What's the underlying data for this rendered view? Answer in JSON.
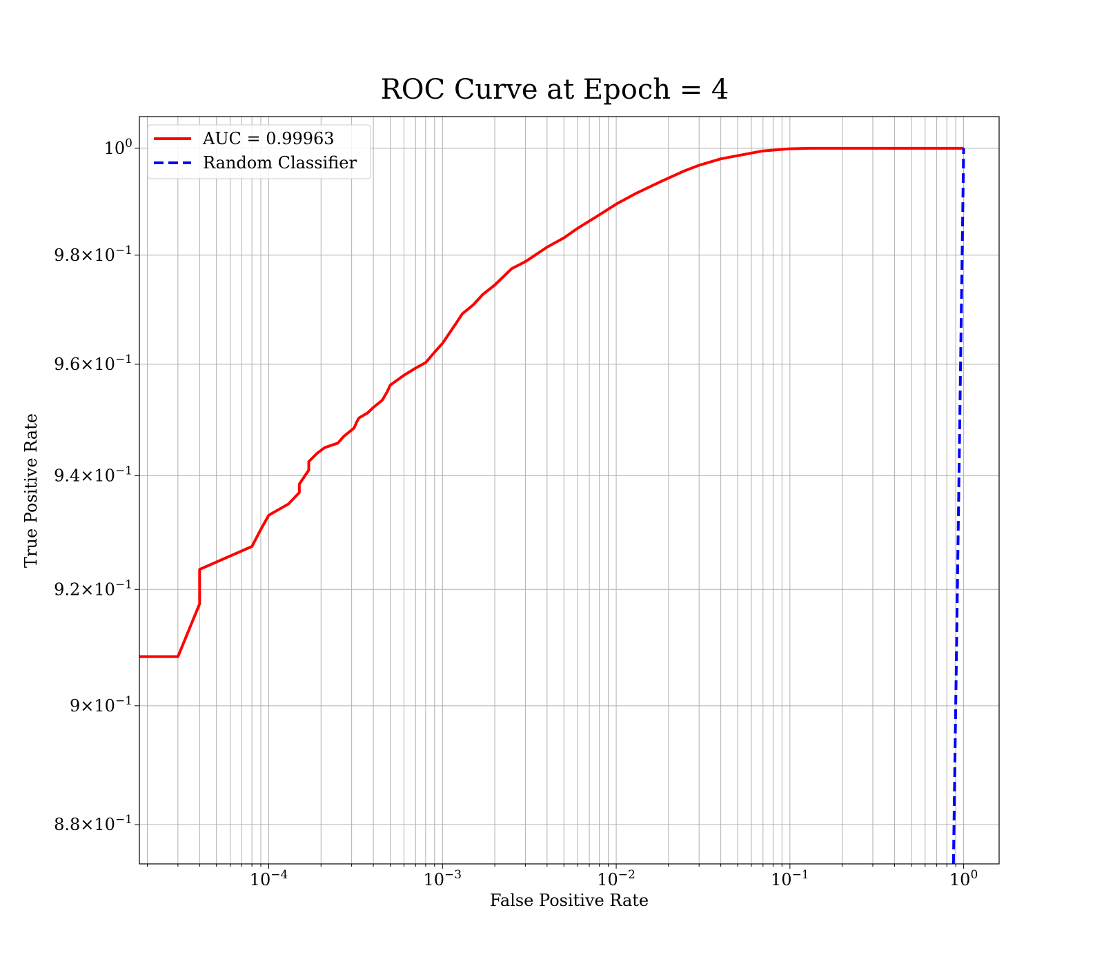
{
  "chart_data": {
    "type": "line",
    "title": "ROC Curve at Epoch = 4",
    "xlabel": "False Positive Rate",
    "ylabel": "True Positive Rate",
    "xscale": "log",
    "yscale": "log",
    "xlim": [
      1.8e-05,
      1.6
    ],
    "ylim": [
      0.8735,
      1.006
    ],
    "grid": "both-major-and-minor",
    "legend_placement": "top-left",
    "x_ticks": [
      {
        "value": 0.0001,
        "base": "10",
        "exp": "−4"
      },
      {
        "value": 0.001,
        "base": "10",
        "exp": "−3"
      },
      {
        "value": 0.01,
        "base": "10",
        "exp": "−2"
      },
      {
        "value": 0.1,
        "base": "10",
        "exp": "−1"
      },
      {
        "value": 1,
        "base": "10",
        "exp": "0"
      }
    ],
    "y_ticks": [
      {
        "value": 1.0,
        "base": "10",
        "exp": "0"
      },
      {
        "value": 0.98,
        "base": "9.8×10",
        "exp": "−1"
      },
      {
        "value": 0.96,
        "base": "9.6×10",
        "exp": "−1"
      },
      {
        "value": 0.94,
        "base": "9.4×10",
        "exp": "−1"
      },
      {
        "value": 0.92,
        "base": "9.2×10",
        "exp": "−1"
      },
      {
        "value": 0.9,
        "base": "9×10",
        "exp": "−1"
      },
      {
        "value": 0.88,
        "base": "8.8×10",
        "exp": "−1"
      }
    ],
    "series": [
      {
        "name": "AUC = 0.99963",
        "color": "#ff0000",
        "style": "solid",
        "points": [
          [
            1.8e-05,
            0.9084
          ],
          [
            2e-05,
            0.9084
          ],
          [
            3e-05,
            0.9084
          ],
          [
            4e-05,
            0.9175
          ],
          [
            4e-05,
            0.9235
          ],
          [
            8e-05,
            0.9275
          ],
          [
            9e-05,
            0.9305
          ],
          [
            0.0001,
            0.933
          ],
          [
            0.00013,
            0.935
          ],
          [
            0.00015,
            0.937
          ],
          [
            0.00015,
            0.9385
          ],
          [
            0.00017,
            0.941
          ],
          [
            0.00017,
            0.9425
          ],
          [
            0.00019,
            0.944
          ],
          [
            0.00021,
            0.945
          ],
          [
            0.00025,
            0.9458
          ],
          [
            0.00027,
            0.947
          ],
          [
            0.00031,
            0.9485
          ],
          [
            0.00032,
            0.9495
          ],
          [
            0.00033,
            0.9503
          ],
          [
            0.00037,
            0.9512
          ],
          [
            0.0004,
            0.9522
          ],
          [
            0.00045,
            0.9535
          ],
          [
            0.00048,
            0.955
          ],
          [
            0.0005,
            0.9562
          ],
          [
            0.0006,
            0.958
          ],
          [
            0.0007,
            0.9593
          ],
          [
            0.0008,
            0.9603
          ],
          [
            0.0009,
            0.9622
          ],
          [
            0.001,
            0.9638
          ],
          [
            0.0012,
            0.9675
          ],
          [
            0.0013,
            0.9692
          ],
          [
            0.0015,
            0.9708
          ],
          [
            0.0017,
            0.9727
          ],
          [
            0.002,
            0.9745
          ],
          [
            0.0025,
            0.9775
          ],
          [
            0.003,
            0.9788
          ],
          [
            0.004,
            0.9815
          ],
          [
            0.005,
            0.9832
          ],
          [
            0.006,
            0.985
          ],
          [
            0.008,
            0.9875
          ],
          [
            0.01,
            0.9895
          ],
          [
            0.013,
            0.9915
          ],
          [
            0.018,
            0.9937
          ],
          [
            0.025,
            0.9958
          ],
          [
            0.03,
            0.9968
          ],
          [
            0.04,
            0.998
          ],
          [
            0.07,
            0.9995
          ],
          [
            0.1,
            0.9999
          ],
          [
            0.13,
            1.0
          ],
          [
            1.0,
            1.0
          ]
        ]
      },
      {
        "name": "Random Classifier",
        "color": "#0000ff",
        "style": "dashed",
        "points": [
          [
            0.8735,
            0.8735
          ],
          [
            0.9,
            0.9
          ],
          [
            0.95,
            0.95
          ],
          [
            1.0,
            1.0
          ]
        ]
      }
    ]
  }
}
